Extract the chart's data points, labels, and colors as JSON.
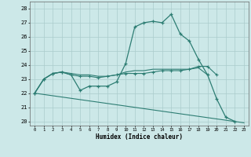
{
  "xlabel": "Humidex (Indice chaleur)",
  "background_color": "#cce8e8",
  "grid_color": "#aacccc",
  "line_color": "#2d7d73",
  "xlim": [
    -0.5,
    23.5
  ],
  "ylim": [
    19.7,
    28.5
  ],
  "yticks": [
    20,
    21,
    22,
    23,
    24,
    25,
    26,
    27,
    28
  ],
  "xticks": [
    0,
    1,
    2,
    3,
    4,
    5,
    6,
    7,
    8,
    9,
    10,
    11,
    12,
    13,
    14,
    15,
    16,
    17,
    18,
    19,
    20,
    21,
    22,
    23
  ],
  "series1_x": [
    0,
    1,
    2,
    3,
    4,
    5,
    6,
    7,
    8,
    9,
    10,
    11,
    12,
    13,
    14,
    15,
    16,
    17,
    18,
    19,
    20,
    21,
    22
  ],
  "series1_y": [
    22.0,
    23.0,
    23.4,
    23.5,
    23.3,
    22.2,
    22.5,
    22.5,
    22.5,
    22.8,
    24.1,
    26.7,
    27.0,
    27.1,
    27.0,
    27.6,
    26.2,
    25.7,
    24.4,
    23.3,
    21.6,
    20.3,
    20.0
  ],
  "series2_x": [
    0,
    1,
    2,
    3,
    4,
    5,
    6,
    7,
    8,
    9,
    10,
    11,
    12,
    13,
    14,
    15,
    16,
    17,
    18,
    19,
    20
  ],
  "series2_y": [
    22.0,
    23.0,
    23.4,
    23.5,
    23.3,
    23.2,
    23.2,
    23.1,
    23.2,
    23.3,
    23.4,
    23.4,
    23.4,
    23.5,
    23.6,
    23.6,
    23.6,
    23.7,
    23.9,
    23.9,
    23.3
  ],
  "series3_x": [
    0,
    1,
    2,
    3,
    4,
    5,
    6,
    7,
    8,
    9,
    10,
    11,
    12,
    13,
    14,
    15,
    16,
    17,
    18,
    19
  ],
  "series3_y": [
    22.0,
    23.0,
    23.4,
    23.5,
    23.4,
    23.3,
    23.3,
    23.2,
    23.2,
    23.3,
    23.5,
    23.6,
    23.6,
    23.7,
    23.7,
    23.7,
    23.7,
    23.7,
    23.8,
    23.3
  ],
  "series4_x": [
    0,
    23
  ],
  "series4_y": [
    22.0,
    19.9
  ]
}
